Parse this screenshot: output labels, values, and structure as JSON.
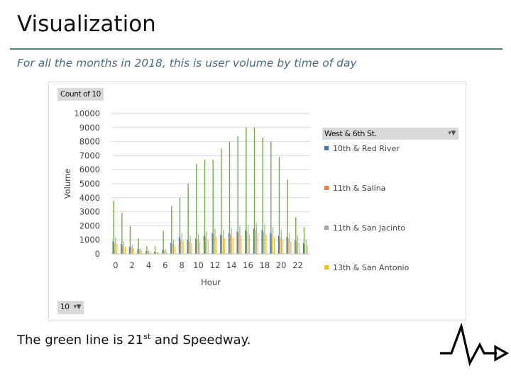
{
  "slide": {
    "title": "Visualization",
    "subtitle": "For all the months in 2018, this is user volume by time of day",
    "caption_pre": "The green line is 21",
    "caption_sup": "st",
    "caption_post": " and Speedway."
  },
  "pivot": {
    "value_field": "Count of 10",
    "filter_field": "10",
    "legend_header": "West & 6th St."
  },
  "icons": {
    "filter": "funnel-dropdown-icon",
    "logo": "pulse-waveform-logo-icon"
  },
  "colors": {
    "accent_rule": "#5a7a90",
    "subtitle": "#4a6a8a",
    "gridline": "#d9d9d9"
  },
  "chart_data": {
    "type": "bar",
    "title": "",
    "xlabel": "Hour",
    "ylabel": "Volume",
    "ylim": [
      0,
      10000
    ],
    "yticks": [
      0,
      1000,
      2000,
      3000,
      4000,
      5000,
      6000,
      7000,
      8000,
      9000,
      10000
    ],
    "xtick_labels": [
      "0",
      "2",
      "4",
      "6",
      "8",
      "10",
      "12",
      "14",
      "16",
      "18",
      "20",
      "22"
    ],
    "categories": [
      0,
      1,
      2,
      3,
      4,
      5,
      6,
      7,
      8,
      9,
      10,
      11,
      12,
      13,
      14,
      15,
      16,
      17,
      18,
      19,
      20,
      21,
      22,
      23
    ],
    "grid": true,
    "legend_position": "right",
    "series": [
      {
        "name": "10th & Red River",
        "color": "#4472c4",
        "values": [
          900,
          700,
          500,
          350,
          200,
          150,
          300,
          800,
          1200,
          1000,
          1100,
          1300,
          1500,
          1400,
          1500,
          1600,
          1700,
          1800,
          1700,
          1500,
          1300,
          1200,
          1000,
          800
        ]
      },
      {
        "name": "11th & Salina",
        "color": "#ed7d31",
        "values": [
          800,
          600,
          450,
          300,
          180,
          120,
          250,
          700,
          1000,
          900,
          1000,
          1200,
          1400,
          1300,
          1400,
          1500,
          1600,
          1700,
          1600,
          1400,
          1200,
          1100,
          900,
          700
        ]
      },
      {
        "name": "11th & San Jacinto",
        "color": "#a5a5a5",
        "values": [
          1200,
          900,
          600,
          400,
          250,
          150,
          350,
          1000,
          1500,
          1300,
          1400,
          1600,
          1800,
          1700,
          1800,
          2000,
          2100,
          2200,
          2100,
          1900,
          1700,
          1500,
          1300,
          1000
        ]
      },
      {
        "name": "13th & San Antonio",
        "color": "#ffc000",
        "values": [
          700,
          500,
          400,
          250,
          150,
          100,
          200,
          600,
          900,
          800,
          900,
          1000,
          1200,
          1100,
          1200,
          1300,
          1400,
          1500,
          1400,
          1200,
          1000,
          900,
          800,
          600
        ]
      }
    ],
    "highlighted_series": {
      "color": "#70ad47",
      "values": [
        3800,
        2900,
        2000,
        1100,
        550,
        550,
        1650,
        3400,
        4000,
        5000,
        6400,
        6700,
        6700,
        7500,
        8000,
        8400,
        9000,
        9000,
        8300,
        8000,
        6900,
        5300,
        2600,
        1900
      ]
    }
  }
}
